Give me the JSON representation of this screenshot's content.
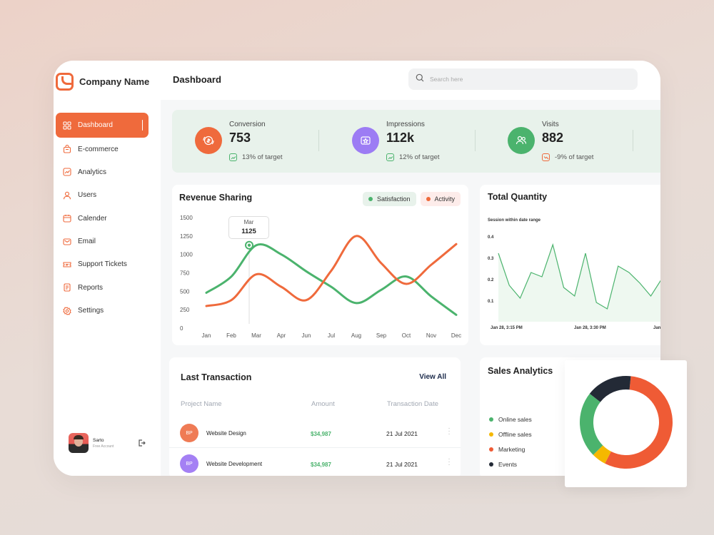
{
  "brand": {
    "name": "Company Name"
  },
  "nav": [
    {
      "label": "Dashboard",
      "icon": "grid-icon",
      "active": true
    },
    {
      "label": "E-commerce",
      "icon": "bag-icon"
    },
    {
      "label": "Analytics",
      "icon": "analytics-icon"
    },
    {
      "label": "Users",
      "icon": "user-icon"
    },
    {
      "label": "Calender",
      "icon": "calendar-icon"
    },
    {
      "label": "Email",
      "icon": "mail-icon"
    },
    {
      "label": "Support Tickets",
      "icon": "ticket-icon"
    },
    {
      "label": "Reports",
      "icon": "report-icon"
    },
    {
      "label": "Settings",
      "icon": "gear-icon"
    }
  ],
  "user": {
    "name": "Sarto",
    "role": "Free Account"
  },
  "header": {
    "title": "Dashboard",
    "search_placeholder": "Search here"
  },
  "stats": [
    {
      "label": "Conversion",
      "value": "753",
      "target": "13% of target",
      "trend": "up",
      "color": "#ef6a3c"
    },
    {
      "label": "Impressions",
      "value": "112k",
      "target": "12% of target",
      "trend": "up",
      "color": "#9c7cf4"
    },
    {
      "label": "Visits",
      "value": "882",
      "target": "-9% of target",
      "trend": "down",
      "color": "#4bb36d"
    }
  ],
  "revenue": {
    "title": "Revenue Sharing",
    "legend": [
      {
        "label": "Satisfaction",
        "color": "#4bb36d",
        "bg": "#e8f2eb"
      },
      {
        "label": "Activity",
        "color": "#ef6a3c",
        "bg": "#fdecea"
      }
    ],
    "tooltip": {
      "label": "Mar",
      "value": "1125"
    }
  },
  "total_quantity": {
    "title": "Total Quantity",
    "subtitle": "Session within date range"
  },
  "transactions": {
    "title": "Last Transaction",
    "view_all": "View All",
    "columns": [
      "Project Name",
      "Amount",
      "Transaction Date"
    ],
    "rows": [
      {
        "initials": "BP",
        "name": "Website Design",
        "amount": "$34,987",
        "date": "21 Jul 2021",
        "color": "#ef7b55"
      },
      {
        "initials": "BP",
        "name": "Website Development",
        "amount": "$34,987",
        "date": "21 Jul 2021",
        "color": "#a480f4"
      }
    ]
  },
  "sales": {
    "title": "Sales Analytics",
    "legend": [
      {
        "label": "Online sales",
        "color": "#4bb36d"
      },
      {
        "label": "Offline sales",
        "color": "#f5b800"
      },
      {
        "label": "Marketing",
        "color": "#ef5b35"
      },
      {
        "label": "Events",
        "color": "#232a36"
      }
    ]
  },
  "chart_data": [
    {
      "type": "line",
      "title": "Revenue Sharing",
      "categories": [
        "Jan",
        "Feb",
        "Mar",
        "Apr",
        "Jun",
        "Jul",
        "Aug",
        "Sep",
        "Oct",
        "Nov",
        "Dec"
      ],
      "ylim": [
        0,
        1500
      ],
      "yticks": [
        0,
        250,
        500,
        750,
        1000,
        1250,
        1500
      ],
      "series": [
        {
          "name": "Satisfaction",
          "color": "#4bb36d",
          "values": [
            480,
            700,
            1125,
            1000,
            770,
            560,
            340,
            520,
            700,
            430,
            180
          ]
        },
        {
          "name": "Activity",
          "color": "#ef6a3c",
          "values": [
            300,
            380,
            730,
            560,
            380,
            780,
            1250,
            880,
            600,
            860,
            1140
          ]
        }
      ],
      "grid": false
    },
    {
      "type": "area",
      "title": "Total Quantity",
      "subtitle": "Session within date range",
      "x_tick_labels": [
        "Jan 28, 3:15 PM",
        "Jan 28, 3:30 PM",
        "Jan"
      ],
      "yticks": [
        0.1,
        0.2,
        0.3,
        0.4
      ],
      "ylim": [
        0,
        0.42
      ],
      "values": [
        0.32,
        0.17,
        0.11,
        0.23,
        0.21,
        0.36,
        0.16,
        0.12,
        0.32,
        0.09,
        0.06,
        0.26,
        0.23,
        0.18,
        0.12,
        0.2,
        0.24
      ],
      "series_color": "#4bb36d"
    },
    {
      "type": "pie",
      "title": "Sales Analytics",
      "donut": true,
      "slices": [
        {
          "label": "Marketing",
          "value": 56,
          "color": "#ef5b35"
        },
        {
          "label": "Offline sales",
          "value": 5,
          "color": "#f5b800"
        },
        {
          "label": "Online sales",
          "value": 23,
          "color": "#4bb36d"
        },
        {
          "label": "Events",
          "value": 16,
          "color": "#232a36"
        }
      ]
    }
  ]
}
